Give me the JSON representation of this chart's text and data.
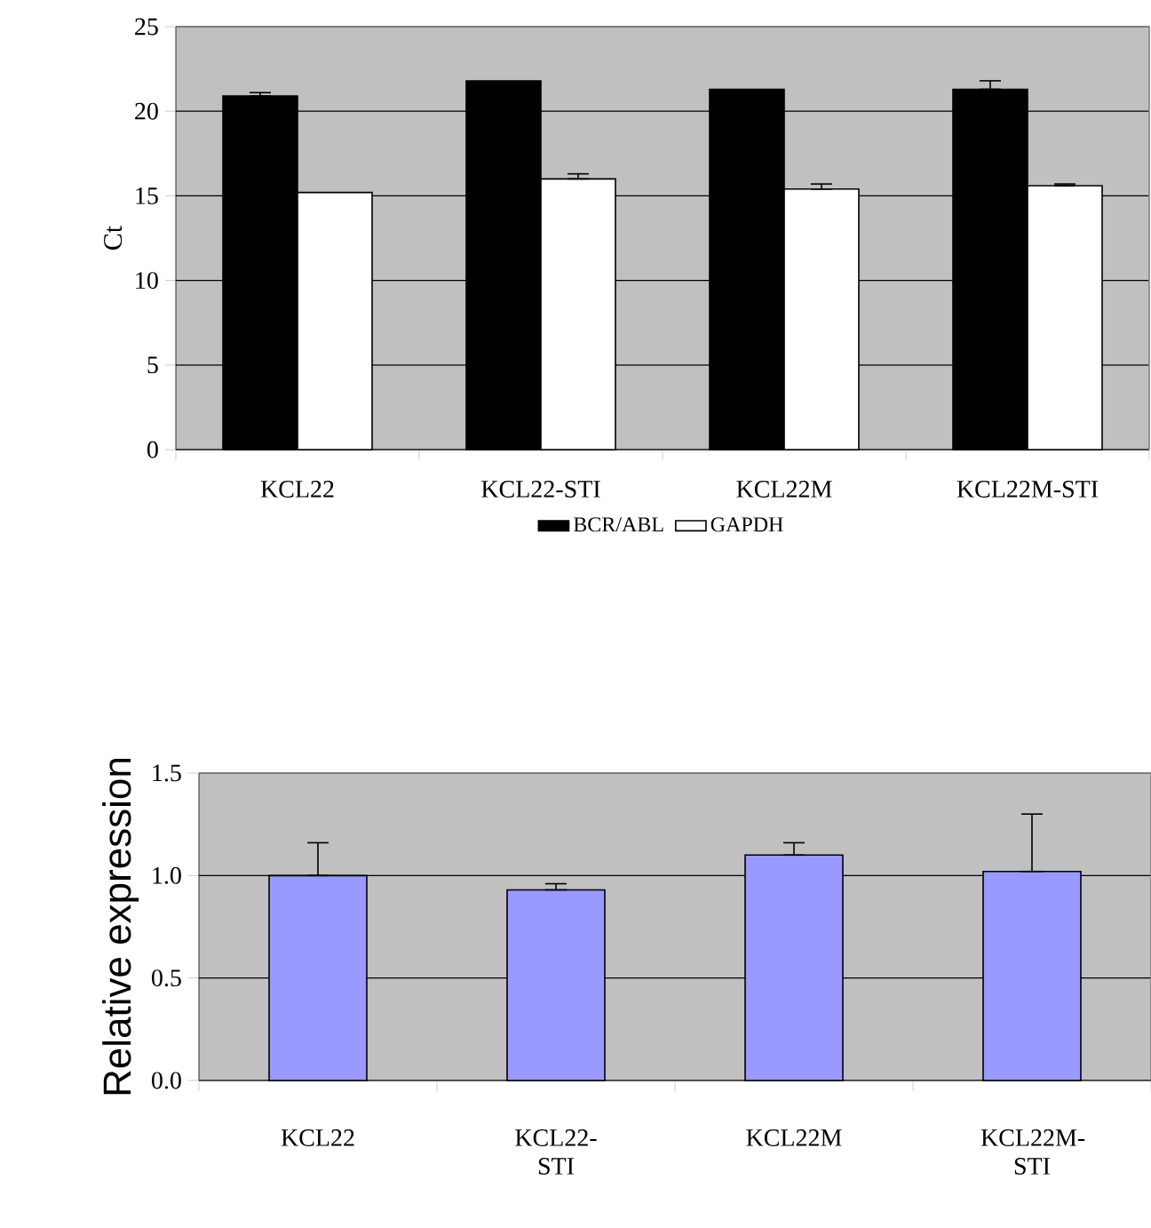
{
  "chart_data": [
    {
      "type": "bar",
      "categories": [
        "KCL22",
        "KCL22-STI",
        "KCL22M",
        "KCL22M-STI"
      ],
      "ylabel": "Ct",
      "ylim": [
        0,
        25
      ],
      "yticks": [
        0,
        5,
        10,
        15,
        20,
        25
      ],
      "grid": "y",
      "legend": "bottom",
      "series": [
        {
          "name": "BCR/ABL",
          "color": "#000000",
          "values": [
            20.9,
            21.8,
            21.3,
            21.3
          ],
          "errors": [
            [
              20.9,
              21.1
            ],
            null,
            null,
            [
              21.3,
              21.8
            ]
          ]
        },
        {
          "name": "GAPDH",
          "color": "#ffffff",
          "values": [
            15.2,
            16.0,
            15.4,
            15.6
          ],
          "errors": [
            null,
            [
              16.0,
              16.3
            ],
            [
              15.4,
              15.7
            ],
            [
              15.6,
              15.7
            ]
          ]
        }
      ]
    },
    {
      "type": "bar",
      "categories": [
        "KCL22",
        "KCL22-STI",
        "KCL22M",
        "KCL22M-STI"
      ],
      "ylabel": "Relative expression",
      "ylim": [
        0,
        1.5
      ],
      "yticks": [
        {
          "value": 0,
          "label": "0.0"
        },
        {
          "value": 0.5,
          "label": "0.5"
        },
        {
          "value": 1.0,
          "label": "1.0"
        },
        {
          "value": 1.5,
          "label": "1.5"
        }
      ],
      "grid": "y",
      "color": "#9999ff",
      "values": [
        1.0,
        0.93,
        1.1,
        1.02
      ],
      "errors": [
        [
          1.0,
          1.16
        ],
        [
          0.93,
          0.96
        ],
        [
          1.1,
          1.16
        ],
        [
          1.02,
          1.3
        ]
      ]
    }
  ]
}
